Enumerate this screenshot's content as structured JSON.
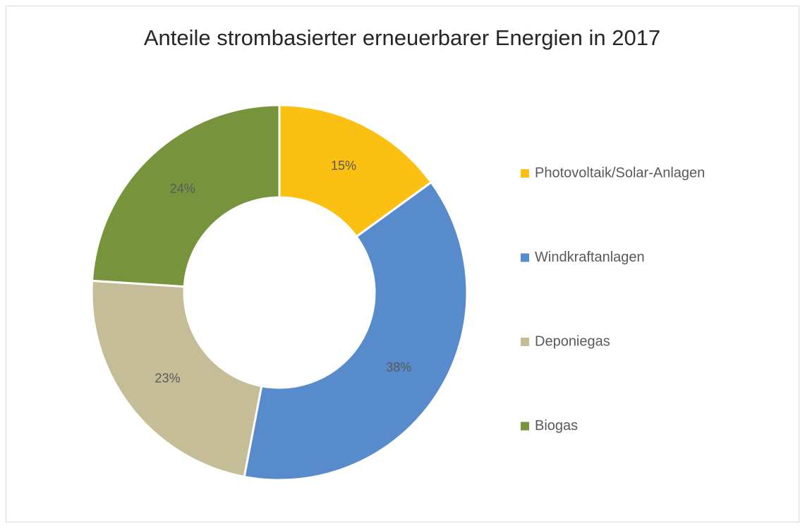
{
  "chart_data": {
    "type": "donut",
    "title": "Anteile strombasierter erneuerbarer Energien in 2017",
    "categories": [
      "Photovoltaik/Solar-Anlagen",
      "Windkraftanlagen",
      "Deponiegas",
      "Biogas"
    ],
    "values": [
      15,
      38,
      23,
      24
    ],
    "value_labels": [
      "15%",
      "38%",
      "23%",
      "24%"
    ],
    "colors": [
      "#fbc012",
      "#588bcb",
      "#c4bd97",
      "#77933c"
    ],
    "legend": "right"
  }
}
